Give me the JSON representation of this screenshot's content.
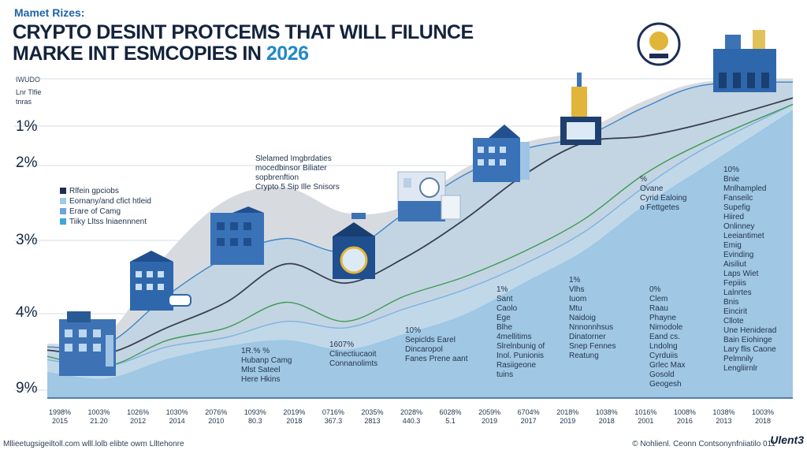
{
  "header": {
    "kicker": "Mamet Rizes:",
    "title_line1": "CRYPTO DESINT PROTCEMS THAT WILL FILUNCE",
    "title_line2": "MARKE INT ESMCOPIES IN",
    "title_year": "2026"
  },
  "corner_labels": [
    "IWUDO",
    "Lnr Tlfie",
    "tnras"
  ],
  "chart_data": {
    "type": "area",
    "title": "CRYPTO DESINT PROTCEMS THAT WILL FILUNCE MARKE INT ESMCOPIES IN 2026",
    "y_tick_labels": [
      "1%",
      "2%",
      "3%",
      "4%",
      "9%"
    ],
    "x_tick_labels": [
      {
        "top": "1998%",
        "bottom": "2015"
      },
      {
        "top": "1003%",
        "bottom": "21.20"
      },
      {
        "top": "1026%",
        "bottom": "2012"
      },
      {
        "top": "1030%",
        "bottom": "2014"
      },
      {
        "top": "2076%",
        "bottom": "2010"
      },
      {
        "top": "1093%",
        "bottom": "80.3"
      },
      {
        "top": "2019%",
        "bottom": "2018"
      },
      {
        "top": "0716%",
        "bottom": "367.3"
      },
      {
        "top": "2035%",
        "bottom": "2813"
      },
      {
        "top": "2028%",
        "bottom": "440.3"
      },
      {
        "top": "6028%",
        "bottom": "5.1"
      },
      {
        "top": "2059%",
        "bottom": "2019"
      },
      {
        "top": "6704%",
        "bottom": "2017"
      },
      {
        "top": "2018%",
        "bottom": "2019"
      },
      {
        "top": "1038%",
        "bottom": "2018"
      },
      {
        "top": "1016%",
        "bottom": "2001"
      },
      {
        "top": "1008%",
        "bottom": "2016"
      },
      {
        "top": "1038%",
        "bottom": "2013"
      },
      {
        "top": "1003%",
        "bottom": "2018"
      }
    ],
    "x_scale": [
      0,
      100
    ],
    "y_scale": [
      0,
      100
    ],
    "series": [
      {
        "color": "#cfd5dc",
        "values": [
          [
            0,
            17
          ],
          [
            8,
            20
          ],
          [
            16,
            45
          ],
          [
            24,
            62
          ],
          [
            32,
            66
          ],
          [
            40,
            58
          ],
          [
            48,
            60
          ],
          [
            56,
            72
          ],
          [
            64,
            80
          ],
          [
            72,
            84
          ],
          [
            80,
            93
          ],
          [
            88,
            99
          ],
          [
            100,
            100
          ]
        ]
      },
      {
        "color": "#3c86c9",
        "values": [
          [
            0,
            16
          ],
          [
            8,
            17
          ],
          [
            16,
            32
          ],
          [
            24,
            44
          ],
          [
            32,
            50
          ],
          [
            40,
            46
          ],
          [
            48,
            58
          ],
          [
            56,
            70
          ],
          [
            64,
            78
          ],
          [
            72,
            82
          ],
          [
            80,
            91
          ],
          [
            88,
            98
          ],
          [
            100,
            99
          ]
        ]
      },
      {
        "color": "#3a3f4e",
        "values": [
          [
            0,
            15
          ],
          [
            8,
            14
          ],
          [
            16,
            22
          ],
          [
            24,
            30
          ],
          [
            32,
            42
          ],
          [
            40,
            36
          ],
          [
            48,
            44
          ],
          [
            56,
            56
          ],
          [
            64,
            70
          ],
          [
            72,
            80
          ],
          [
            80,
            82
          ],
          [
            88,
            86
          ],
          [
            100,
            94
          ]
        ]
      },
      {
        "color": "#7fb2df",
        "values": [
          [
            0,
            12
          ],
          [
            8,
            10
          ],
          [
            16,
            16
          ],
          [
            24,
            19
          ],
          [
            32,
            24
          ],
          [
            40,
            22
          ],
          [
            48,
            28
          ],
          [
            56,
            34
          ],
          [
            64,
            42
          ],
          [
            72,
            52
          ],
          [
            80,
            66
          ],
          [
            88,
            78
          ],
          [
            100,
            92
          ]
        ]
      },
      {
        "color": "#3f9a55",
        "values": [
          [
            0,
            13
          ],
          [
            8,
            10
          ],
          [
            16,
            18
          ],
          [
            24,
            22
          ],
          [
            32,
            30
          ],
          [
            40,
            24
          ],
          [
            48,
            32
          ],
          [
            56,
            38
          ],
          [
            64,
            46
          ],
          [
            72,
            56
          ],
          [
            80,
            70
          ],
          [
            88,
            80
          ],
          [
            100,
            92
          ]
        ]
      },
      {
        "color": "#9ac8e6",
        "values": [
          [
            0,
            8
          ],
          [
            8,
            6
          ],
          [
            16,
            12
          ],
          [
            24,
            16
          ],
          [
            32,
            18
          ],
          [
            40,
            15
          ],
          [
            48,
            20
          ],
          [
            56,
            26
          ],
          [
            64,
            36
          ],
          [
            72,
            46
          ],
          [
            80,
            60
          ],
          [
            88,
            72
          ],
          [
            100,
            90
          ]
        ]
      }
    ]
  },
  "legend": {
    "items": [
      {
        "label": "Rlfein gpciobs",
        "color": "#1d2e55"
      },
      {
        "label": "Eornany/and cfict htleid",
        "color": "#9ecbe9"
      },
      {
        "label": "Erare of Camg",
        "color": "#6ea4d8"
      },
      {
        "label": "Tiiky Lltss lniaennnent",
        "color": "#3fa7d6"
      }
    ]
  },
  "annotations": [
    {
      "id": "callout-top",
      "lines": [
        "Slelamed Imgbrdaties",
        "mocedbinsor Biliater",
        "sopbrenftion",
        "Crypto 5 Sip Ille Snisors"
      ]
    },
    {
      "id": "note-a",
      "lines": [
        "1R.% %",
        "Hubanp Camg",
        "Mlst Sateel",
        "Here Hkins"
      ]
    },
    {
      "id": "note-b",
      "lines": [
        "1607%",
        "Clinectiucaoit",
        "Connanolimts"
      ]
    },
    {
      "id": "note-c",
      "lines": [
        "10%",
        "Sepiclds Earel",
        "Dincaropol",
        "Fanes Prene aant"
      ]
    },
    {
      "id": "note-d",
      "lines": [
        "1%",
        "Sant",
        "Caolo",
        "Ege",
        "Blhe",
        "4mellitims",
        "Slrelnbunig of",
        "Inol. Punionis",
        "Rasiigeone",
        "tuins"
      ]
    },
    {
      "id": "note-e",
      "lines": [
        "1%",
        "Vlhs",
        "Iuom",
        "Mtu",
        "Naidoig",
        "Nnnonnhsus",
        "Dinatorner",
        "Snep Fennes",
        "Reatung"
      ]
    },
    {
      "id": "note-f",
      "lines": [
        "0%",
        "Clem",
        "Raau",
        "Phayne",
        "Nimodole",
        "Eand cs.",
        "Lndolng",
        "Cyrduiis",
        "Grlec Max",
        "Gosold",
        "Geogesh"
      ]
    },
    {
      "id": "note-g",
      "lines": [
        "%",
        "Ovane",
        "Cyrid Ealoing",
        "o Fettgetes"
      ]
    },
    {
      "id": "note-h",
      "lines": [
        "10%",
        "Bnie",
        "Mnlhampled",
        "Fanseilc",
        "Supefig",
        "Hiired",
        "Onlinney",
        "Leeiantimet",
        "Emig",
        "Evinding",
        "Aisiliut",
        "Laps Wiet",
        "Fepiiis",
        "Lalnrtes",
        "Bnis",
        "Eincirit",
        "Cllote",
        "Une Heniderad",
        "Bain Eiohinge",
        "Lary flis Caone",
        "Pelmnily",
        "Lengliirnlr"
      ]
    }
  ],
  "footer": {
    "left": "Mllieetugsigeiltoll.com wlll.lolb elibte owm Llltehonre",
    "right": "© Nohlienl. Ceonn Contsonynfniiatilo 011",
    "logo": "Ulent3"
  }
}
